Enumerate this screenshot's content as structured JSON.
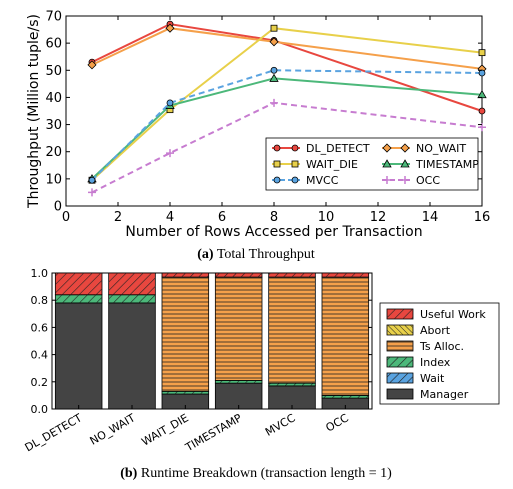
{
  "chart_data": [
    {
      "type": "line",
      "xlabel": "Number of Rows Accessed per Transaction",
      "ylabel": "Throughput (Million tuple/s)",
      "xlim": [
        0,
        16
      ],
      "ylim": [
        0,
        70
      ],
      "xticks": [
        0,
        2,
        4,
        6,
        8,
        10,
        12,
        14,
        16
      ],
      "yticks": [
        0,
        10,
        20,
        30,
        40,
        50,
        60,
        70
      ],
      "grid": false,
      "legend_position": "lower-right",
      "x": [
        1,
        4,
        8,
        16
      ],
      "series": [
        {
          "name": "DL_DETECT",
          "values": [
            53,
            67,
            61,
            35
          ],
          "color": "#e8473f",
          "style": "solid",
          "marker": "circle"
        },
        {
          "name": "NO_WAIT",
          "values": [
            52,
            65.5,
            60.5,
            50.5
          ],
          "color": "#f5a04a",
          "style": "solid",
          "marker": "diamond"
        },
        {
          "name": "WAIT_DIE",
          "values": [
            9.5,
            35.5,
            65.5,
            56.5
          ],
          "color": "#e8d04a",
          "style": "solid",
          "marker": "square"
        },
        {
          "name": "TIMESTAMP",
          "values": [
            10,
            37,
            47,
            41
          ],
          "color": "#4cb87a",
          "style": "solid",
          "marker": "triangle"
        },
        {
          "name": "MVCC",
          "values": [
            9.5,
            38,
            50,
            49
          ],
          "color": "#5aa3e0",
          "style": "dashed",
          "marker": "circle"
        },
        {
          "name": "OCC",
          "values": [
            5,
            19.5,
            38,
            29
          ],
          "color": "#c77cd0",
          "style": "dashed",
          "marker": "plus"
        }
      ],
      "caption_label": "(a)",
      "caption_text": " Total Throughput"
    },
    {
      "type": "bar",
      "stacked": true,
      "ylim": [
        0,
        1.0
      ],
      "yticks": [
        "0.0",
        "0.2",
        "0.4",
        "0.6",
        "0.8",
        "1.0"
      ],
      "categories": [
        "DL_DETECT",
        "NO_WAIT",
        "WAIT_DIE",
        "TIMESTAMP",
        "MVCC",
        "OCC"
      ],
      "legend_position": "right",
      "series": [
        {
          "name": "Manager",
          "color": "#444444",
          "hatch": "none",
          "values": [
            0.78,
            0.78,
            0.11,
            0.19,
            0.17,
            0.08
          ]
        },
        {
          "name": "Wait",
          "color": "#5aa3e0",
          "hatch": "diag",
          "values": [
            0.0,
            0.0,
            0.0,
            0.0,
            0.0,
            0.0
          ]
        },
        {
          "name": "Index",
          "color": "#4cb87a",
          "hatch": "diag",
          "values": [
            0.06,
            0.06,
            0.02,
            0.02,
            0.02,
            0.02
          ]
        },
        {
          "name": "Ts Alloc.",
          "color": "#f5a04a",
          "hatch": "horiz",
          "values": [
            0.0,
            0.0,
            0.84,
            0.76,
            0.78,
            0.87
          ]
        },
        {
          "name": "Abort",
          "color": "#e8d04a",
          "hatch": "back",
          "values": [
            0.0,
            0.0,
            0.0,
            0.0,
            0.0,
            0.0
          ]
        },
        {
          "name": "Useful Work",
          "color": "#e8473f",
          "hatch": "diag",
          "values": [
            0.16,
            0.16,
            0.03,
            0.03,
            0.03,
            0.03
          ]
        }
      ],
      "legend_order": [
        "Useful Work",
        "Abort",
        "Ts Alloc.",
        "Index",
        "Wait",
        "Manager"
      ],
      "caption_label": "(b)",
      "caption_text": " Runtime Breakdown (transaction length = 1)"
    }
  ]
}
